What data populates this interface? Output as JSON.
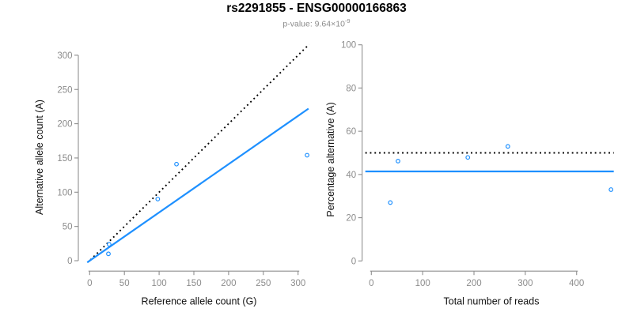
{
  "header": {
    "title": "rs2291855 - ENSG00000166863",
    "pvalue_label": "p-value: ",
    "pvalue_base": "9.64×10",
    "pvalue_exponent": "-9"
  },
  "colors": {
    "accent_blue": "#1E90FF",
    "line_black": "#000000",
    "axis_gray": "#8F8F8F",
    "tick_label_gray": "#8C8C8C",
    "subtitle_gray": "#8C8C8C",
    "background": "#FFFFFF"
  },
  "chart_data": [
    {
      "type": "scatter",
      "panel": "left",
      "title": "",
      "xlabel": "Reference allele count (G)",
      "ylabel": "Alternative allele count (A)",
      "xlim": [
        0,
        320
      ],
      "ylim": [
        0,
        320
      ],
      "xticks": [
        0,
        50,
        100,
        150,
        200,
        250,
        300
      ],
      "yticks": [
        0,
        50,
        100,
        150,
        200,
        250,
        300
      ],
      "grid": false,
      "legend": null,
      "points": [
        [
          27,
          10
        ],
        [
          28,
          24
        ],
        [
          98,
          90
        ],
        [
          125,
          141
        ],
        [
          313,
          154
        ]
      ],
      "lines": [
        {
          "name": "identity-line",
          "style": "dotted",
          "color": "#000000",
          "points": [
            [
              1,
              1
            ],
            [
              316,
              316
            ]
          ],
          "description": "y = x"
        },
        {
          "name": "regression-line",
          "style": "solid",
          "color": "#1E90FF",
          "points": [
            [
              -3.5,
              -2.5
            ],
            [
              315,
              222
            ]
          ],
          "slope": 0.705
        }
      ]
    },
    {
      "type": "scatter",
      "panel": "right",
      "title": "",
      "xlabel": "Total number of reads",
      "ylabel": "Percentage alternative (A)",
      "xlim": [
        0,
        480
      ],
      "ylim": [
        0,
        100
      ],
      "xticks": [
        0,
        100,
        200,
        300,
        400
      ],
      "yticks": [
        0,
        20,
        40,
        60,
        80,
        100
      ],
      "grid": false,
      "legend": null,
      "points": [
        [
          37,
          27
        ],
        [
          52,
          46.2
        ],
        [
          188,
          47.9
        ],
        [
          266,
          53
        ],
        [
          467,
          33
        ]
      ],
      "lines": [
        {
          "name": "fifty-percent-line",
          "style": "dotted",
          "color": "#000000",
          "y": 50
        },
        {
          "name": "mean-percentage-line",
          "style": "solid",
          "color": "#1E90FF",
          "y": 41.4
        }
      ]
    }
  ]
}
